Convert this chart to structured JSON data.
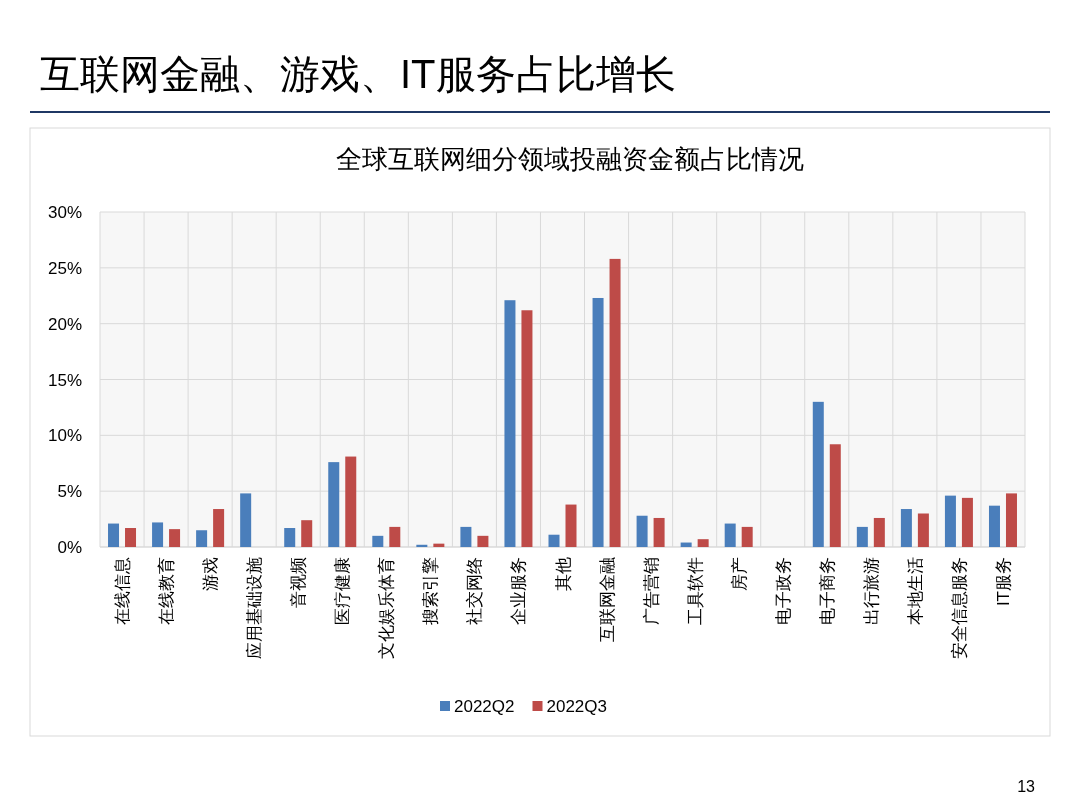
{
  "chart_data": {
    "type": "bar",
    "title": "互联网金融、游戏、IT服务占比增长",
    "subtitle": "全球互联网细分领域投融资金额占比情况",
    "categories": [
      "在线信息",
      "在线教育",
      "游戏",
      "应用基础设施",
      "音视频",
      "医疗健康",
      "文化娱乐体育",
      "搜索引擎",
      "社交网络",
      "企业服务",
      "其他",
      "互联网金融",
      "广告营销",
      "工具软件",
      "房产",
      "电子政务",
      "电子商务",
      "出行旅游",
      "本地生活",
      "安全信息服务",
      "IT服务"
    ],
    "series": [
      {
        "name": "2022Q2",
        "color": "#4a7ebb",
        "values": [
          2.1,
          2.2,
          1.5,
          4.8,
          1.7,
          7.6,
          1.0,
          0.2,
          1.8,
          22.1,
          1.1,
          22.3,
          2.8,
          0.4,
          2.1,
          0,
          13.0,
          1.8,
          3.4,
          4.6,
          3.7
        ]
      },
      {
        "name": "2022Q3",
        "color": "#be4b48",
        "values": [
          1.7,
          1.6,
          3.4,
          0,
          2.4,
          8.1,
          1.8,
          0.3,
          1.0,
          21.2,
          3.8,
          25.8,
          2.6,
          0.7,
          1.8,
          0,
          9.2,
          2.6,
          3.0,
          4.4,
          4.8
        ]
      }
    ],
    "ylim": [
      0,
      30
    ],
    "yticks": [
      {
        "value": 0,
        "label": "0%"
      },
      {
        "value": 5,
        "label": "5%"
      },
      {
        "value": 10,
        "label": "10%"
      },
      {
        "value": 15,
        "label": "15%"
      },
      {
        "value": 20,
        "label": "20%"
      },
      {
        "value": 25,
        "label": "25%"
      },
      {
        "value": 30,
        "label": "30%"
      }
    ],
    "grid": true,
    "legend": "bottom",
    "annotations": [
      "13"
    ]
  }
}
